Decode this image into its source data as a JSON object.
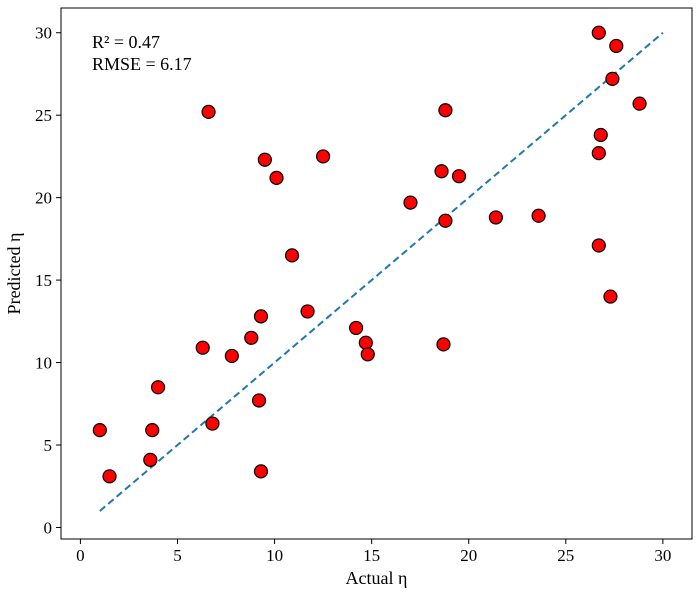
{
  "chart_data": {
    "type": "scatter",
    "title": "",
    "xlabel": "Actual η",
    "ylabel": "Predicted η",
    "xlim": [
      -1,
      31.5
    ],
    "ylim": [
      -0.7,
      31.5
    ],
    "xticks": [
      0,
      5,
      10,
      15,
      20,
      25,
      30
    ],
    "yticks": [
      0,
      5,
      10,
      15,
      20,
      25,
      30
    ],
    "grid": false,
    "annotations": [
      "R² = 0.47",
      "RMSE = 6.17"
    ],
    "reference_line": {
      "style": "dashed",
      "color": "#1f77b4",
      "x": [
        1,
        30
      ],
      "y": [
        1,
        30
      ]
    },
    "marker": {
      "fill": "#ff0000",
      "edge": "#000000"
    },
    "points": [
      {
        "x": 1.0,
        "y": 5.9
      },
      {
        "x": 1.5,
        "y": 3.1
      },
      {
        "x": 3.6,
        "y": 4.1
      },
      {
        "x": 3.7,
        "y": 5.9
      },
      {
        "x": 4.0,
        "y": 8.5
      },
      {
        "x": 6.3,
        "y": 10.9
      },
      {
        "x": 6.6,
        "y": 25.2
      },
      {
        "x": 6.8,
        "y": 6.3
      },
      {
        "x": 7.8,
        "y": 10.4
      },
      {
        "x": 8.8,
        "y": 11.5
      },
      {
        "x": 9.2,
        "y": 7.7
      },
      {
        "x": 9.3,
        "y": 12.8
      },
      {
        "x": 9.3,
        "y": 3.4
      },
      {
        "x": 9.5,
        "y": 22.3
      },
      {
        "x": 10.1,
        "y": 21.2
      },
      {
        "x": 10.9,
        "y": 16.5
      },
      {
        "x": 11.7,
        "y": 13.1
      },
      {
        "x": 12.5,
        "y": 22.5
      },
      {
        "x": 14.2,
        "y": 12.1
      },
      {
        "x": 14.7,
        "y": 11.2
      },
      {
        "x": 14.8,
        "y": 10.5
      },
      {
        "x": 17.0,
        "y": 19.7
      },
      {
        "x": 18.6,
        "y": 21.6
      },
      {
        "x": 18.7,
        "y": 11.1
      },
      {
        "x": 18.8,
        "y": 18.6
      },
      {
        "x": 18.8,
        "y": 25.3
      },
      {
        "x": 19.5,
        "y": 21.3
      },
      {
        "x": 21.4,
        "y": 18.8
      },
      {
        "x": 23.6,
        "y": 18.9
      },
      {
        "x": 26.7,
        "y": 22.7
      },
      {
        "x": 26.7,
        "y": 30.0
      },
      {
        "x": 26.7,
        "y": 17.1
      },
      {
        "x": 26.8,
        "y": 23.8
      },
      {
        "x": 27.3,
        "y": 14.0
      },
      {
        "x": 27.4,
        "y": 27.2
      },
      {
        "x": 27.6,
        "y": 29.2
      },
      {
        "x": 28.8,
        "y": 25.7
      }
    ]
  }
}
